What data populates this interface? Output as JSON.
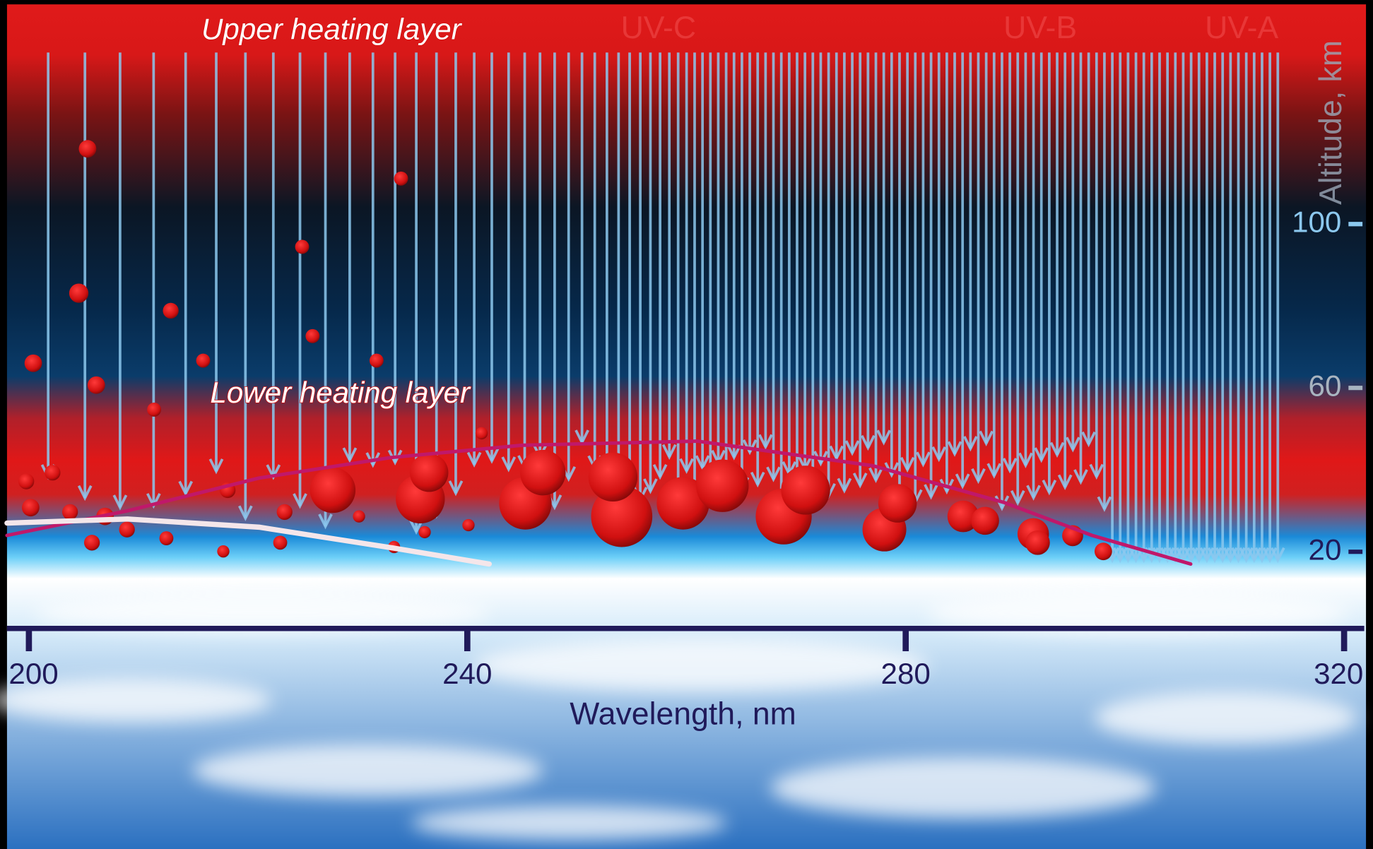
{
  "chart_data": {
    "type": "line",
    "annotations": [
      "Upper heating layer",
      "Lower heating layer"
    ],
    "bands": [
      "UV-C",
      "UV-B",
      "UV-A"
    ],
    "x_label": "Wavelength, nm",
    "y_label": "Altitude, km",
    "xlim": [
      200,
      320
    ],
    "xticks": [
      200,
      240,
      280,
      320
    ],
    "ylim": [
      0,
      150
    ],
    "yticks": [
      20,
      60,
      100
    ],
    "series": [
      {
        "color": "#c0186a",
        "x": [
          198,
          209,
          221,
          233,
          245,
          261,
          277,
          289,
          297,
          306
        ],
        "values": [
          24,
          30,
          38,
          43,
          46,
          47,
          41,
          32,
          24,
          17
        ]
      },
      {
        "color": "#f4e6ea",
        "x": [
          198,
          209,
          221,
          233,
          242
        ],
        "values": [
          27,
          28,
          26,
          21,
          17
        ]
      }
    ]
  }
}
